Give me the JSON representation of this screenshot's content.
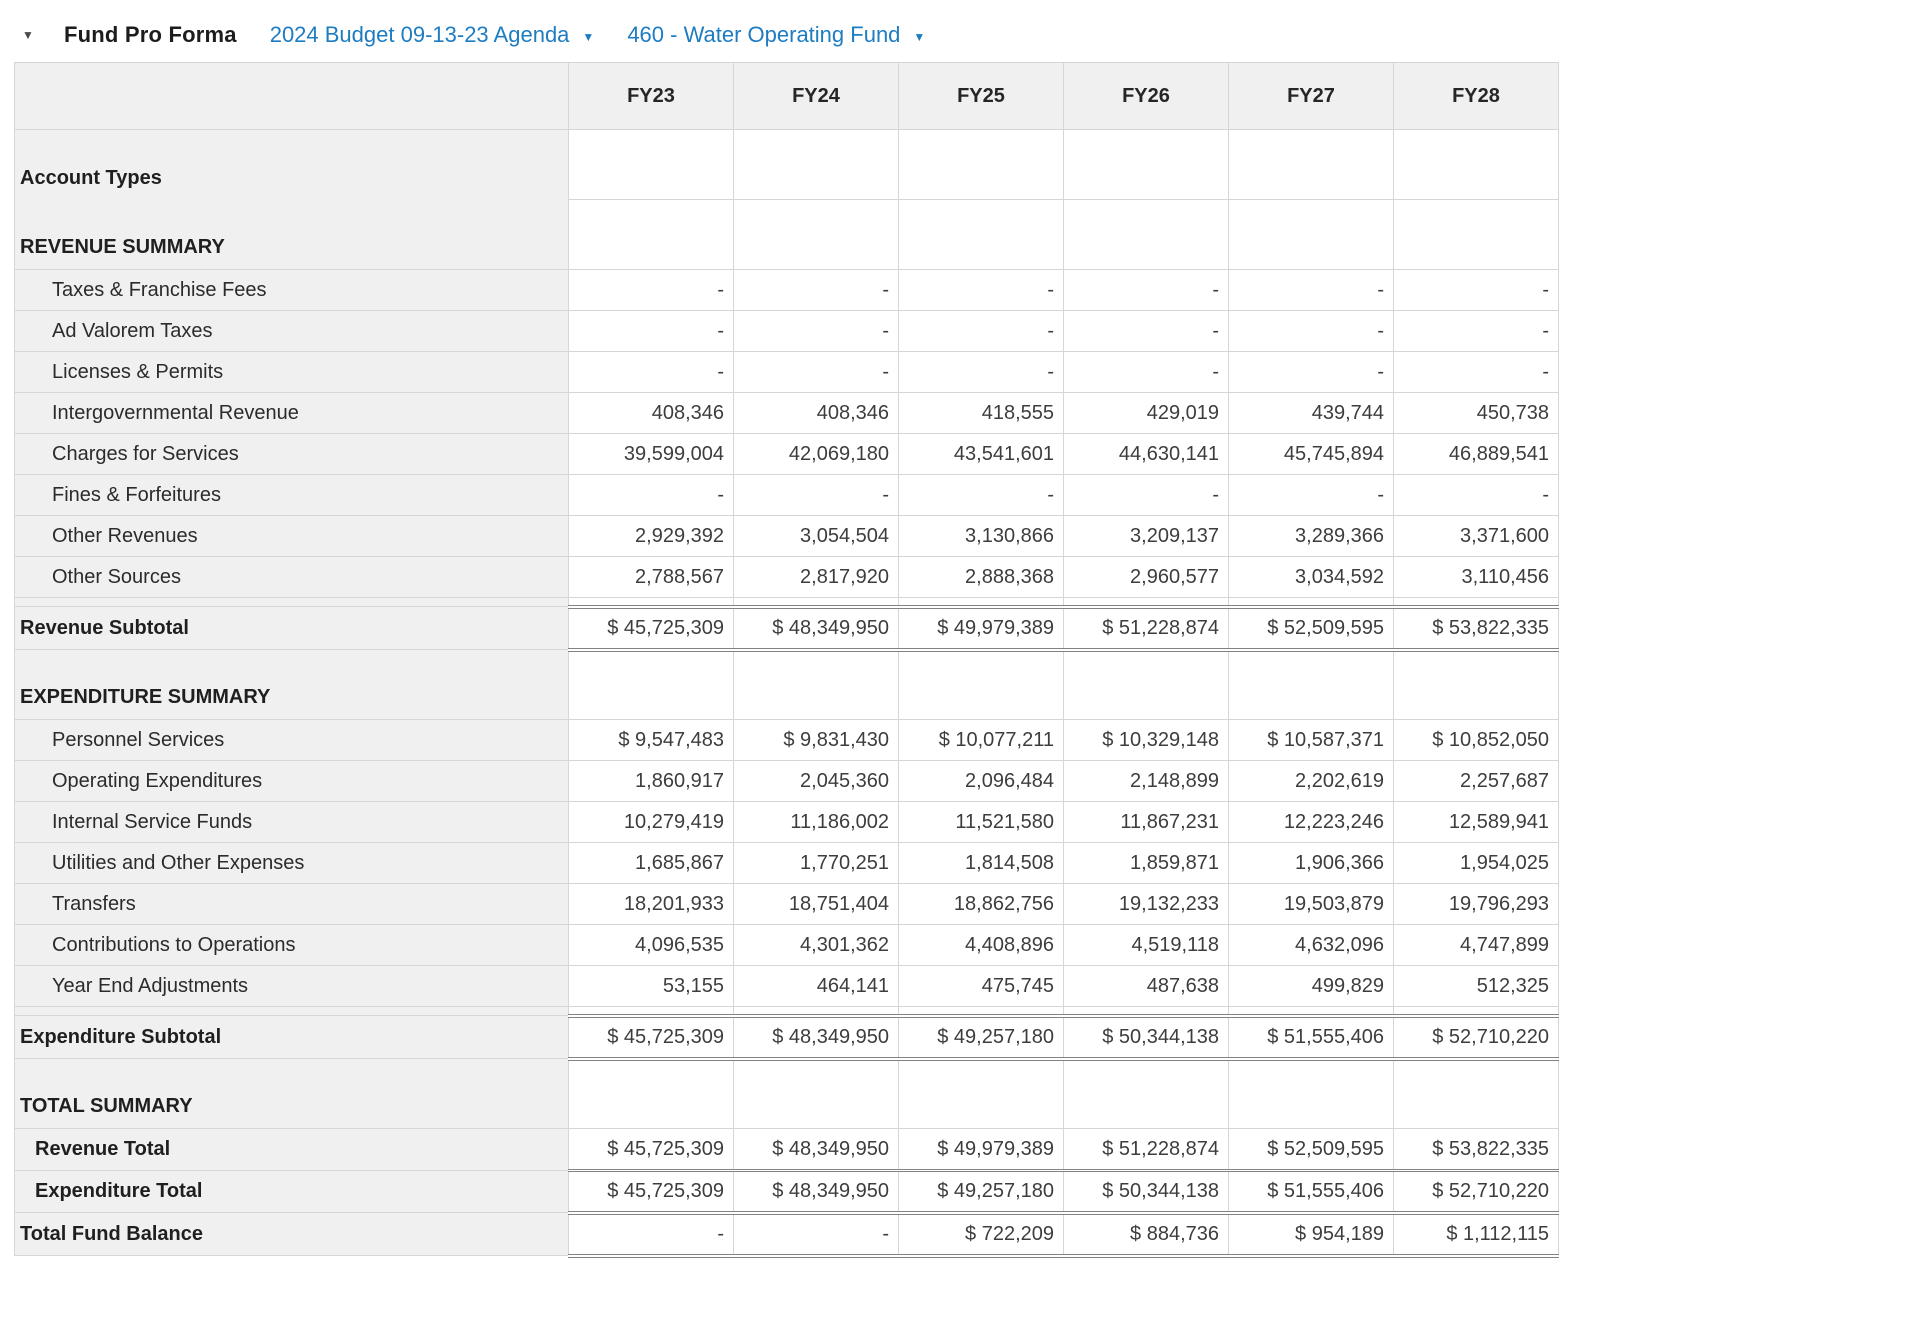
{
  "header": {
    "title": "Fund Pro Forma",
    "budget_selector": "2024 Budget 09-13-23 Agenda",
    "fund_selector": "460 - Water Operating Fund"
  },
  "icons": {
    "collapse": "▼",
    "dropdown": "▼"
  },
  "colors": {
    "link_blue": "#1d7cc2",
    "header_gray": "#f0f0f0",
    "grid_border": "#d6d6d6",
    "double_rule": "#828282"
  },
  "table": {
    "columns": [
      "FY23",
      "FY24",
      "FY25",
      "FY26",
      "FY27",
      "FY28"
    ],
    "rows": [
      {
        "label": "Account Types",
        "type": "section-tall",
        "values": [
          "",
          "",
          "",
          "",
          "",
          ""
        ]
      },
      {
        "label": "REVENUE SUMMARY",
        "type": "section-tall no-top-border",
        "values": [
          "",
          "",
          "",
          "",
          "",
          ""
        ]
      },
      {
        "label": "Taxes & Franchise Fees",
        "type": "account",
        "values": [
          "-",
          "-",
          "-",
          "-",
          "-",
          "-"
        ]
      },
      {
        "label": "Ad Valorem Taxes",
        "type": "account",
        "values": [
          "-",
          "-",
          "-",
          "-",
          "-",
          "-"
        ]
      },
      {
        "label": "Licenses & Permits",
        "type": "account",
        "values": [
          "-",
          "-",
          "-",
          "-",
          "-",
          "-"
        ]
      },
      {
        "label": "Intergovernmental Revenue",
        "type": "account",
        "values": [
          "408,346",
          "408,346",
          "418,555",
          "429,019",
          "439,744",
          "450,738"
        ]
      },
      {
        "label": "Charges for Services",
        "type": "account",
        "values": [
          "39,599,004",
          "42,069,180",
          "43,541,601",
          "44,630,141",
          "45,745,894",
          "46,889,541"
        ]
      },
      {
        "label": "Fines & Forfeitures",
        "type": "account",
        "values": [
          "-",
          "-",
          "-",
          "-",
          "-",
          "-"
        ]
      },
      {
        "label": "Other Revenues",
        "type": "account",
        "values": [
          "2,929,392",
          "3,054,504",
          "3,130,866",
          "3,209,137",
          "3,289,366",
          "3,371,600"
        ]
      },
      {
        "label": "Other Sources",
        "type": "account",
        "values": [
          "2,788,567",
          "2,817,920",
          "2,888,368",
          "2,960,577",
          "3,034,592",
          "3,110,456"
        ]
      },
      {
        "label": "",
        "type": "spacer",
        "values": [
          "",
          "",
          "",
          "",
          "",
          ""
        ]
      },
      {
        "label": "Revenue Subtotal",
        "type": "subtotal",
        "values": [
          "$ 45,725,309",
          "$ 48,349,950",
          "$ 49,979,389",
          "$ 51,228,874",
          "$ 52,509,595",
          "$ 53,822,335"
        ]
      },
      {
        "label": "EXPENDITURE SUMMARY",
        "type": "section-tall",
        "values": [
          "",
          "",
          "",
          "",
          "",
          ""
        ]
      },
      {
        "label": "Personnel Services",
        "type": "account",
        "values": [
          "$ 9,547,483",
          "$ 9,831,430",
          "$ 10,077,211",
          "$ 10,329,148",
          "$ 10,587,371",
          "$ 10,852,050"
        ]
      },
      {
        "label": "Operating Expenditures",
        "type": "account",
        "values": [
          "1,860,917",
          "2,045,360",
          "2,096,484",
          "2,148,899",
          "2,202,619",
          "2,257,687"
        ]
      },
      {
        "label": "Internal Service Funds",
        "type": "account",
        "values": [
          "10,279,419",
          "11,186,002",
          "11,521,580",
          "11,867,231",
          "12,223,246",
          "12,589,941"
        ]
      },
      {
        "label": "Utilities and Other Expenses",
        "type": "account",
        "values": [
          "1,685,867",
          "1,770,251",
          "1,814,508",
          "1,859,871",
          "1,906,366",
          "1,954,025"
        ]
      },
      {
        "label": "Transfers",
        "type": "account",
        "values": [
          "18,201,933",
          "18,751,404",
          "18,862,756",
          "19,132,233",
          "19,503,879",
          "19,796,293"
        ]
      },
      {
        "label": "Contributions to Operations",
        "type": "account",
        "values": [
          "4,096,535",
          "4,301,362",
          "4,408,896",
          "4,519,118",
          "4,632,096",
          "4,747,899"
        ]
      },
      {
        "label": "Year End Adjustments",
        "type": "account",
        "values": [
          "53,155",
          "464,141",
          "475,745",
          "487,638",
          "499,829",
          "512,325"
        ]
      },
      {
        "label": "",
        "type": "spacer",
        "values": [
          "",
          "",
          "",
          "",
          "",
          ""
        ]
      },
      {
        "label": "Expenditure Subtotal",
        "type": "subtotal",
        "values": [
          "$ 45,725,309",
          "$ 48,349,950",
          "$ 49,257,180",
          "$ 50,344,138",
          "$ 51,555,406",
          "$ 52,710,220"
        ]
      },
      {
        "label": "TOTAL SUMMARY",
        "type": "section-tall",
        "values": [
          "",
          "",
          "",
          "",
          "",
          ""
        ]
      },
      {
        "label": "Revenue Total",
        "type": "total",
        "values": [
          "$ 45,725,309",
          "$ 48,349,950",
          "$ 49,979,389",
          "$ 51,228,874",
          "$ 52,509,595",
          "$ 53,822,335"
        ]
      },
      {
        "label": "Expenditure Total",
        "type": "total total-exp",
        "values": [
          "$ 45,725,309",
          "$ 48,349,950",
          "$ 49,257,180",
          "$ 50,344,138",
          "$ 51,555,406",
          "$ 52,710,220"
        ]
      },
      {
        "label": "Total Fund Balance",
        "type": "grand-total",
        "values": [
          "-",
          "-",
          "$ 722,209",
          "$ 884,736",
          "$ 954,189",
          "$ 1,112,115"
        ]
      }
    ]
  }
}
